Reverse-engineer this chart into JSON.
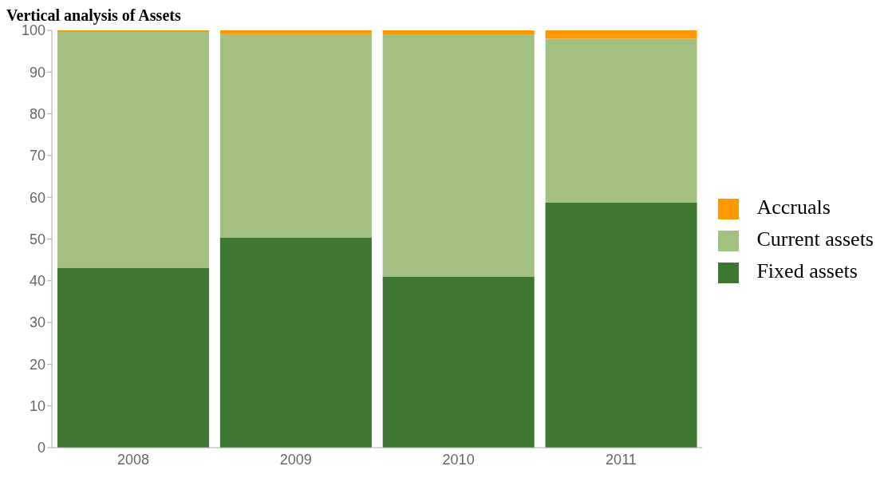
{
  "chart_data": {
    "type": "bar",
    "title": "Vertical analysis of Assets",
    "stacked": true,
    "categories": [
      "2008",
      "2009",
      "2010",
      "2011"
    ],
    "series": [
      {
        "name": "Fixed assets",
        "color": "#3d7731",
        "values": [
          43.1,
          50.4,
          41.0,
          58.7
        ]
      },
      {
        "name": "Current assets",
        "color": "#a2c081",
        "values": [
          56.5,
          48.7,
          57.9,
          39.3
        ]
      },
      {
        "name": "Accruals",
        "color": "#ff9900",
        "values": [
          0.4,
          0.9,
          1.1,
          2.0
        ]
      }
    ],
    "ylim": [
      0,
      100
    ],
    "yticks": [
      0,
      10,
      20,
      30,
      40,
      50,
      60,
      70,
      80,
      90,
      100
    ],
    "grid": false,
    "legend": "right"
  }
}
